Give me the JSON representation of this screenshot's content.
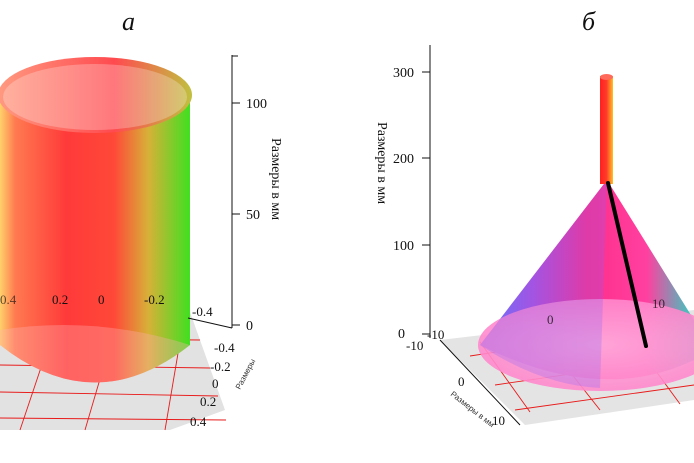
{
  "panels": {
    "a": {
      "label": "а",
      "z_axis_title": "Размеры в мм",
      "z_ticks": [
        "0",
        "50",
        "100"
      ],
      "floor_ticks_back": [
        "0.4",
        "0.2",
        "0",
        "-0.2",
        "-0.4"
      ],
      "floor_ticks_side": [
        "-0.4",
        "-0.2",
        "0",
        "0.2",
        "0.4"
      ],
      "floor_axis_title": "Размеры"
    },
    "b": {
      "label": "б",
      "z_axis_title": "Размеры в мм",
      "z_ticks": [
        "0",
        "100",
        "200",
        "300"
      ],
      "floor_ticks_back": [
        "-10",
        "0",
        "10"
      ],
      "floor_ticks_side": [
        "-10",
        "0",
        "10"
      ],
      "floor_axis_title": "Размеры в мм"
    }
  },
  "colors": {
    "cylinder_red": "#ff3a3a",
    "cylinder_green": "#40e020",
    "cone_pink": "#ff2e9a",
    "cone_blue": "#5a7cff",
    "grid_red": "#e81a1a",
    "floor_gray": "#d9d9d9"
  }
}
